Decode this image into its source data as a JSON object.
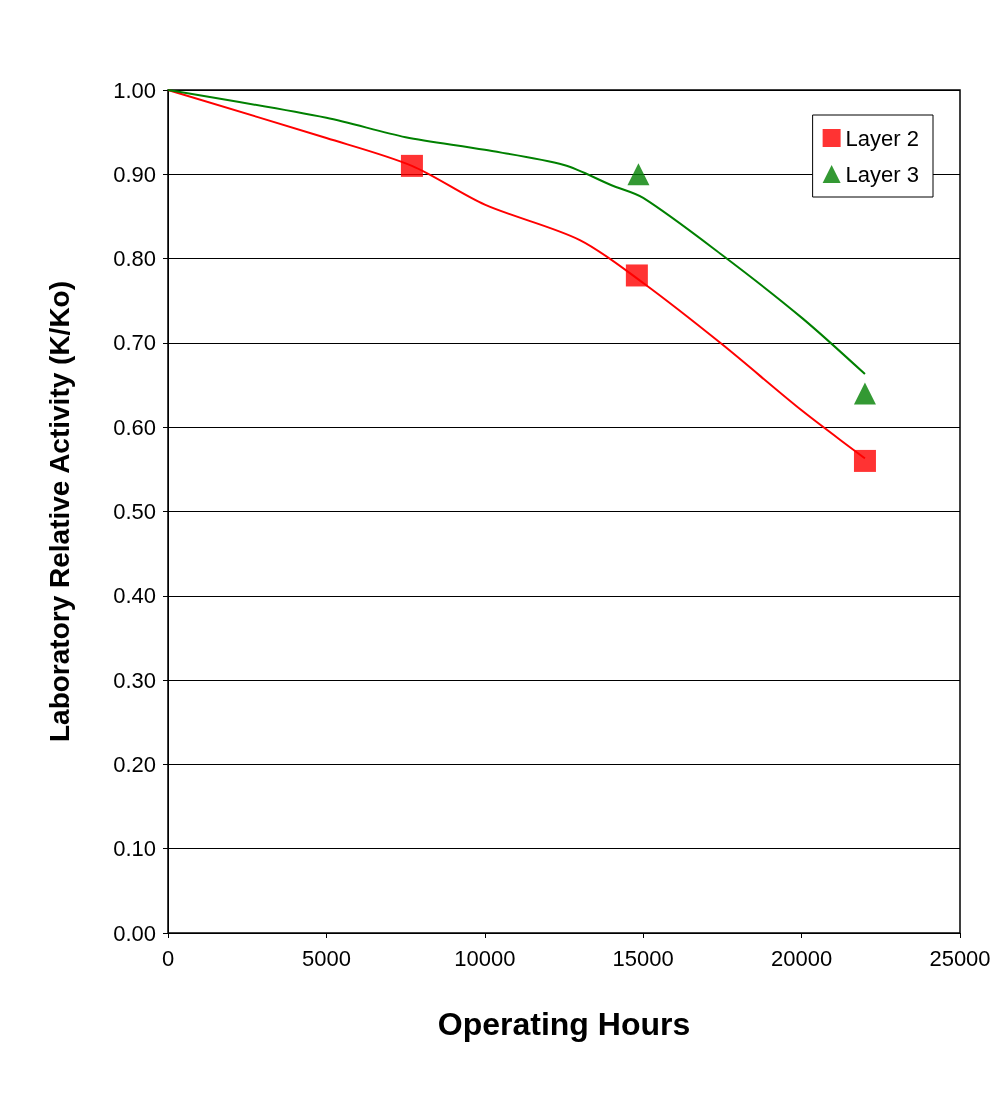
{
  "chart_data": {
    "type": "scatter",
    "xlabel": "Operating Hours",
    "ylabel": "Laboratory Relative Activity (K/Ko)",
    "xlim": [
      0,
      25000
    ],
    "xticks": [
      0,
      5000,
      10000,
      15000,
      20000,
      25000
    ],
    "ylim": [
      0,
      1
    ],
    "yticks": [
      {
        "value": 0,
        "label": "0.00"
      },
      {
        "value": 0.1,
        "label": "0.10"
      },
      {
        "value": 0.2,
        "label": "0.20"
      },
      {
        "value": 0.3,
        "label": "0.30"
      },
      {
        "value": 0.4,
        "label": "0.40"
      },
      {
        "value": 0.5,
        "label": "0.50"
      },
      {
        "value": 0.6,
        "label": "0.60"
      },
      {
        "value": 0.7,
        "label": "0.70"
      },
      {
        "value": 0.8,
        "label": "0.80"
      },
      {
        "value": 0.9,
        "label": "0.90"
      },
      {
        "value": 1,
        "label": "1.00"
      }
    ],
    "grid": "y",
    "legend": "top right",
    "series": [
      {
        "name": "Layer 2",
        "marker": "square",
        "color": "#ff0000",
        "x": [
          7700,
          14800,
          22000
        ],
        "values": [
          0.91,
          0.78,
          0.56
        ]
      },
      {
        "name": "Layer 3",
        "marker": "triangle",
        "color": "#008000",
        "x": [
          14850,
          22000
        ],
        "values": [
          0.9,
          0.64
        ]
      },
      {
        "type": "line",
        "marker": "none",
        "color": "#ff0000",
        "x": [
          0,
          5000,
          7700,
          10000,
          13000,
          15000,
          17500,
          20000,
          22000
        ],
        "values": [
          1.0,
          0.943,
          0.91,
          0.864,
          0.822,
          0.771,
          0.698,
          0.62,
          0.563
        ]
      },
      {
        "type": "line",
        "marker": "none",
        "color": "#008000",
        "x": [
          0,
          5000,
          7500,
          10000,
          12500,
          14000,
          15000,
          17500,
          20000,
          22000
        ],
        "values": [
          1.0,
          0.967,
          0.944,
          0.929,
          0.911,
          0.887,
          0.872,
          0.804,
          0.73,
          0.663
        ]
      }
    ]
  }
}
